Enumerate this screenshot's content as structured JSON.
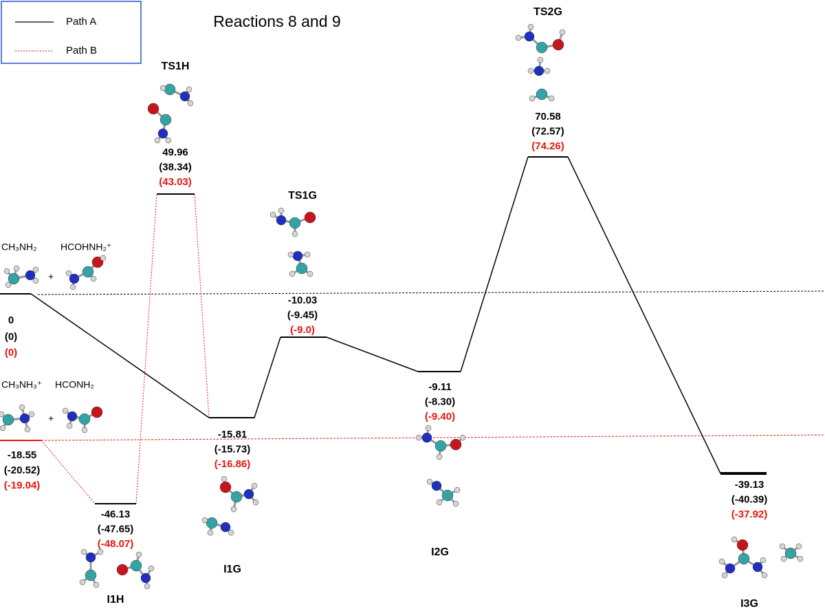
{
  "title": "Reactions 8 and 9",
  "legend": [
    {
      "label": "Path A"
    },
    {
      "label": "Path B"
    }
  ],
  "reactants": [
    {
      "species": [
        "CH₃NH₂",
        "HCOHNH₂⁺"
      ],
      "plus": "+",
      "energies": [
        "0",
        "(0)",
        "(0)"
      ]
    },
    {
      "species": [
        "CH₃NH₃⁺",
        "HCONH₂"
      ],
      "plus": "+",
      "energies": [
        "-18.55",
        "(-20.52)",
        "(-19.04)"
      ]
    }
  ],
  "nodes": [
    {
      "label": "TS1H",
      "energies": [
        "49.96",
        "(38.34)",
        "(43.03)"
      ]
    },
    {
      "label": "I1H",
      "energies": [
        "-46.13",
        "(-47.65)",
        "(-48.07)"
      ]
    },
    {
      "label": "I1G",
      "energies": [
        "-15.81",
        "(-15.73)",
        "(-16.86)"
      ]
    },
    {
      "label": "TS1G",
      "energies": [
        "-10.03",
        "(-9.45)",
        "(-9.0)"
      ]
    },
    {
      "label": "I2G",
      "energies": [
        "-9.11",
        "(-8.30)",
        "(-9.40)"
      ]
    },
    {
      "label": "TS2G",
      "energies": [
        "70.58",
        "(72.57)",
        "(74.26)"
      ]
    },
    {
      "label": "I3G",
      "energies": [
        "-39.13",
        "(-40.39)",
        "(-37.92)"
      ]
    }
  ]
}
